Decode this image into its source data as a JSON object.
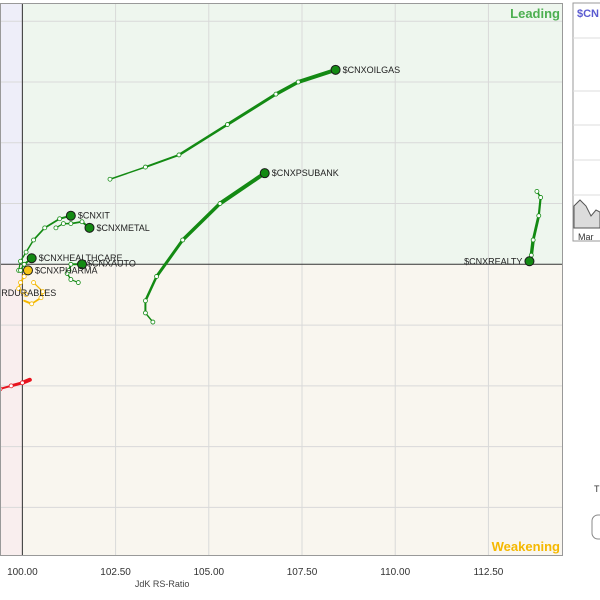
{
  "chart_data": {
    "type": "scatter",
    "xlabel": "JdK RS-Ratio",
    "xlim": [
      99.4,
      114.5
    ],
    "ylim": [
      95.2,
      104.3
    ],
    "center": [
      100,
      100
    ],
    "x_ticks": [
      "100.00",
      "102.50",
      "105.00",
      "107.50",
      "110.00",
      "112.50"
    ],
    "quadrants": {
      "leading": {
        "label": "Leading",
        "color": "#4caf50"
      },
      "weakening": {
        "label": "Weakening",
        "color": "#f5b800"
      }
    },
    "series": [
      {
        "name": "$CNXOILGAS",
        "color": "#138a13",
        "points": [
          [
            102.35,
            101.4
          ],
          [
            103.3,
            101.6
          ],
          [
            104.2,
            101.8
          ],
          [
            105.5,
            102.3
          ],
          [
            106.8,
            102.8
          ],
          [
            107.4,
            103.0
          ],
          [
            108.4,
            103.2
          ]
        ]
      },
      {
        "name": "$CNXPSUBANK",
        "color": "#138a13",
        "points": [
          [
            103.5,
            99.05
          ],
          [
            103.3,
            99.2
          ],
          [
            103.3,
            99.4
          ],
          [
            103.6,
            99.8
          ],
          [
            104.3,
            100.4
          ],
          [
            105.3,
            101.0
          ],
          [
            106.5,
            101.5
          ]
        ]
      },
      {
        "name": "$CNXREALTY",
        "color": "#138a13",
        "points": [
          [
            113.8,
            101.2
          ],
          [
            113.9,
            101.1
          ],
          [
            113.85,
            100.8
          ],
          [
            113.7,
            100.4
          ],
          [
            113.65,
            100.15
          ],
          [
            113.6,
            100.05
          ]
        ]
      },
      {
        "name": "$CNXIT",
        "color": "#138a13",
        "points": [
          [
            99.9,
            99.9
          ],
          [
            99.95,
            100.05
          ],
          [
            100.1,
            100.2
          ],
          [
            100.3,
            100.4
          ],
          [
            100.6,
            100.6
          ],
          [
            101.0,
            100.75
          ],
          [
            101.3,
            100.8
          ]
        ]
      },
      {
        "name": "$CNXMETAL",
        "color": "#138a13",
        "points": [
          [
            100.9,
            100.6
          ],
          [
            101.1,
            100.67
          ],
          [
            101.3,
            100.67
          ],
          [
            101.6,
            100.7
          ],
          [
            101.8,
            100.6
          ]
        ]
      },
      {
        "name": "$CNXHEALTHCARE",
        "color": "#138a13",
        "points": [
          [
            99.95,
            99.9
          ],
          [
            100.05,
            100.0
          ],
          [
            100.25,
            100.1
          ]
        ]
      },
      {
        "name": "$CNXAUTO",
        "color": "#138a13",
        "points": [
          [
            101.5,
            99.7
          ],
          [
            101.3,
            99.75
          ],
          [
            101.2,
            99.85
          ],
          [
            101.25,
            99.9
          ],
          [
            101.3,
            100.0
          ],
          [
            101.6,
            100.0
          ]
        ]
      },
      {
        "name": "$CNXPHARMA",
        "color": "#f5b800",
        "points": [
          [
            100.1,
            99.5
          ],
          [
            100.0,
            99.55
          ],
          [
            99.9,
            99.6
          ],
          [
            99.95,
            99.7
          ],
          [
            100.05,
            99.8
          ],
          [
            100.15,
            99.9
          ]
        ]
      },
      {
        "name": "CONSUMERDURABLES",
        "color": "#f5b800",
        "points": [
          [
            100.3,
            99.7
          ],
          [
            100.55,
            99.55
          ],
          [
            100.5,
            99.45
          ],
          [
            100.25,
            99.35
          ],
          [
            100.05,
            99.4
          ]
        ]
      },
      {
        "name": "",
        "color": "#e8141e",
        "points": [
          [
            99.4,
            97.95
          ],
          [
            99.7,
            98.0
          ],
          [
            100.0,
            98.05
          ],
          [
            100.2,
            98.1
          ]
        ]
      }
    ]
  },
  "side_panel": {
    "partial_title": "$CN",
    "month_label": "Mar",
    "partial_text": "T"
  }
}
